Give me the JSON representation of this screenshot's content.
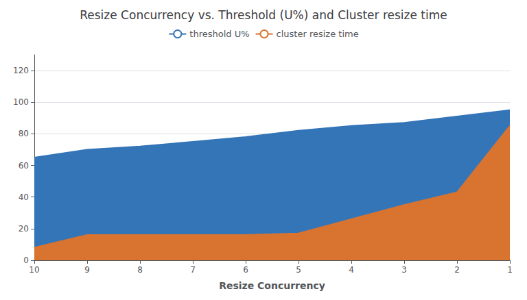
{
  "chart_data": {
    "type": "area",
    "title": "Resize Concurrency vs. Threshold (U%) and Cluster resize time",
    "xlabel": "Resize Concurrency",
    "x": [
      10,
      9,
      8,
      7,
      6,
      5,
      4,
      3,
      2,
      1
    ],
    "series": [
      {
        "name": "threshold U%",
        "color": "#3475B8",
        "values": [
          65,
          70,
          72,
          75,
          78,
          82,
          85,
          87,
          91,
          95
        ]
      },
      {
        "name": "cluster resize time",
        "color": "#D87430",
        "values": [
          8,
          16,
          16,
          16,
          16,
          17,
          26,
          35,
          43,
          85
        ]
      }
    ],
    "xlim": [
      10,
      1
    ],
    "xticks": [
      10,
      9,
      8,
      7,
      6,
      5,
      4,
      3,
      2,
      1
    ],
    "ylim": [
      0,
      130
    ],
    "yticks": [
      0,
      20,
      40,
      60,
      80,
      100,
      120
    ],
    "grid": true,
    "legend": "top"
  }
}
